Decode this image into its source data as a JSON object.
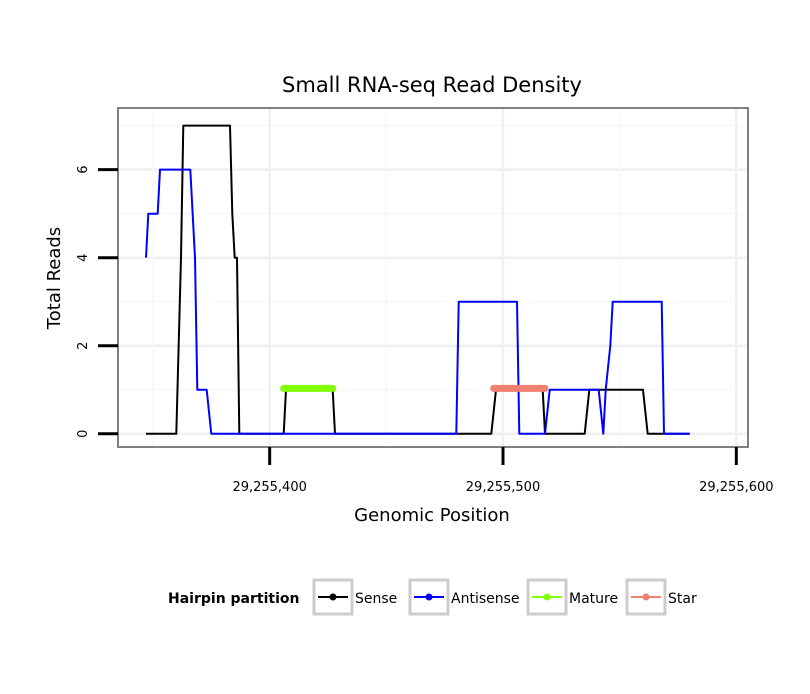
{
  "chart_data": {
    "type": "line",
    "title": "Small RNA-seq Read Density",
    "xlabel": "Genomic Position",
    "ylabel": "Total Reads",
    "xlim": [
      29255335,
      29255605
    ],
    "ylim": [
      -0.3,
      7.4
    ],
    "x_ticks": [
      29255400,
      29255500,
      29255600
    ],
    "x_tick_labels": [
      "29,255,400",
      "29,255,500",
      "29,255,600"
    ],
    "y_ticks": [
      0,
      2,
      4,
      6
    ],
    "y_tick_labels": [
      "0",
      "2",
      "4",
      "6"
    ],
    "grid": true,
    "legend_position": "bottom",
    "legend_title": "Hairpin partition",
    "series": [
      {
        "name": "Sense",
        "color": "#000000",
        "x": [
          29255347,
          29255360,
          29255362,
          29255363,
          29255383,
          29255384,
          29255385,
          29255386,
          29255387,
          29255406,
          29255407,
          29255427,
          29255428,
          29255495,
          29255497,
          29255517,
          29255518,
          29255535,
          29255537,
          29255549,
          29255550,
          29255560,
          29255562,
          29255580
        ],
        "values": [
          0,
          0,
          4,
          7,
          7,
          5,
          4,
          4,
          0,
          0,
          1,
          1,
          0,
          0,
          1,
          1,
          0,
          0,
          1,
          1,
          1,
          1,
          0,
          0
        ]
      },
      {
        "name": "Antisense",
        "color": "#0000ff",
        "x": [
          29255347,
          29255348,
          29255352,
          29255353,
          29255366,
          29255368,
          29255369,
          29255373,
          29255375,
          29255480,
          29255481,
          29255506,
          29255507,
          29255518,
          29255520,
          29255535,
          29255536,
          29255541,
          29255543,
          29255544,
          29255546,
          29255547,
          29255568,
          29255569,
          29255580
        ],
        "values": [
          4,
          5,
          5,
          6,
          6,
          4,
          1,
          1,
          0,
          0,
          3,
          3,
          0,
          0,
          1,
          1,
          1,
          1,
          0,
          1,
          2,
          3,
          3,
          0,
          0
        ]
      },
      {
        "name": "Mature",
        "color": "#7fff00",
        "x": [
          29255406,
          29255427
        ],
        "values": [
          1.03,
          1.03
        ]
      },
      {
        "name": "Star",
        "color": "#f08070",
        "x": [
          29255496,
          29255518
        ],
        "values": [
          1.03,
          1.03
        ]
      }
    ]
  }
}
